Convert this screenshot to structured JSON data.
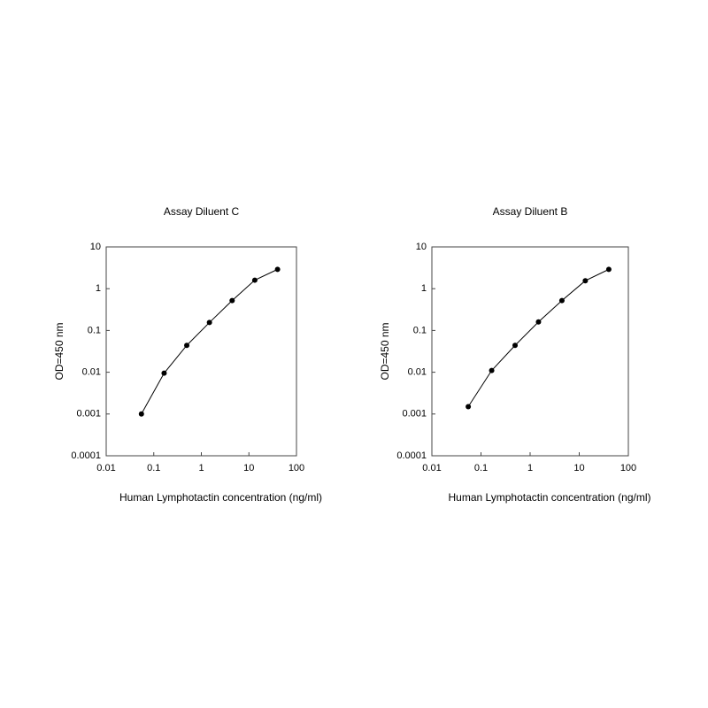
{
  "chart_data": [
    {
      "type": "line",
      "title": "Assay Diluent C",
      "xlabel": "Human Lymphotactin concentration (ng/ml)",
      "ylabel": "OD=450 nm",
      "xlog": true,
      "ylog": true,
      "color": "#000000",
      "xlim": [
        0.01,
        100
      ],
      "xticks": [
        0.01,
        0.1,
        1,
        10,
        100
      ],
      "ylim": [
        0.0001,
        10
      ],
      "yticks": [
        0.0001,
        0.001,
        0.01,
        0.1,
        1,
        10
      ],
      "x": [
        0.055,
        0.165,
        0.494,
        1.48,
        4.44,
        13.3,
        40
      ],
      "values": [
        0.001,
        0.0095,
        0.044,
        0.155,
        0.52,
        1.6,
        2.9
      ]
    },
    {
      "type": "line",
      "title": "Assay Diluent B",
      "xlabel": "Human Lymphotactin concentration (ng/ml)",
      "ylabel": "OD=450 nm",
      "xlog": true,
      "ylog": true,
      "color": "#000000",
      "xlim": [
        0.01,
        100
      ],
      "xticks": [
        0.01,
        0.1,
        1,
        10,
        100
      ],
      "ylim": [
        0.0001,
        10
      ],
      "yticks": [
        0.0001,
        0.001,
        0.01,
        0.1,
        1,
        10
      ],
      "x": [
        0.055,
        0.165,
        0.494,
        1.48,
        4.44,
        13.3,
        40
      ],
      "values": [
        0.0015,
        0.011,
        0.044,
        0.16,
        0.52,
        1.55,
        2.9
      ]
    }
  ]
}
